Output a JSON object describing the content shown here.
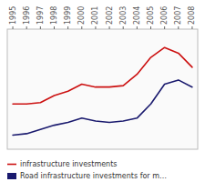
{
  "chart_data": {
    "type": "line",
    "x": [
      1995,
      1996,
      1997,
      1998,
      1999,
      2000,
      2001,
      2002,
      2003,
      2004,
      2005,
      2006,
      2007,
      2008
    ],
    "series": [
      {
        "name": "infrastructure investments",
        "color": "#cc1111",
        "values": [
          42,
          42,
          43,
          48,
          51,
          56,
          54,
          54,
          55,
          63,
          75,
          82,
          78,
          68
        ]
      },
      {
        "name": "Road infrastructure investments for m…",
        "color": "#1a1a6e",
        "values": [
          20,
          21,
          24,
          27,
          29,
          32,
          30,
          29,
          30,
          32,
          42,
          56,
          59,
          54
        ]
      }
    ],
    "xlim": [
      1994.6,
      2008.4
    ],
    "xticks": [
      1995,
      1996,
      1997,
      1998,
      1999,
      2000,
      2001,
      2002,
      2003,
      2004,
      2005,
      2006,
      2007,
      2008
    ],
    "ylim": [
      10,
      95
    ],
    "grid": false,
    "tick_labels": "x",
    "legend": "lower left"
  }
}
